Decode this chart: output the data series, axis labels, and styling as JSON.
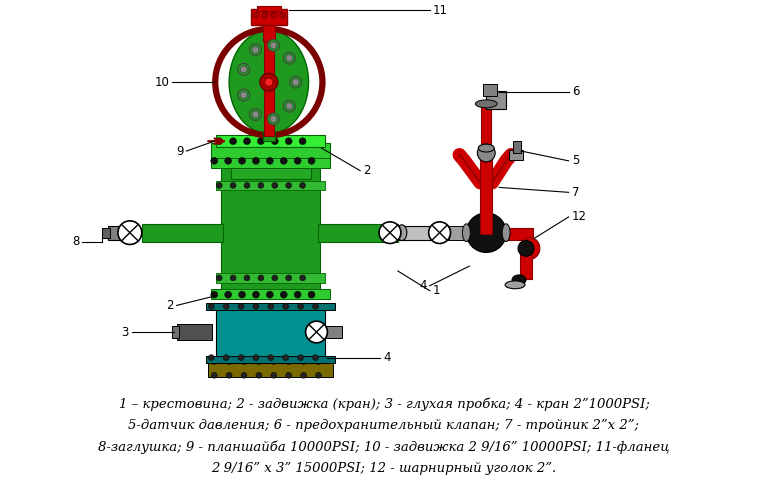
{
  "caption_lines": [
    "1 – крестовина; 2 - задвижка (кран); 3 - глухая пробка; 4 - кран 2”1000PSI;",
    "5-датчик давления; 6 - предохранительный клапан; 7 - тройник 2”x 2”;",
    "8-заглушка; 9 - планшайба 10000PSI; 10 - задвижка 2 9/16” 10000PSI; 11-фланец",
    "2 9/16” х 3” 15000PSI; 12 - шарнирный уголок 2”."
  ]
}
